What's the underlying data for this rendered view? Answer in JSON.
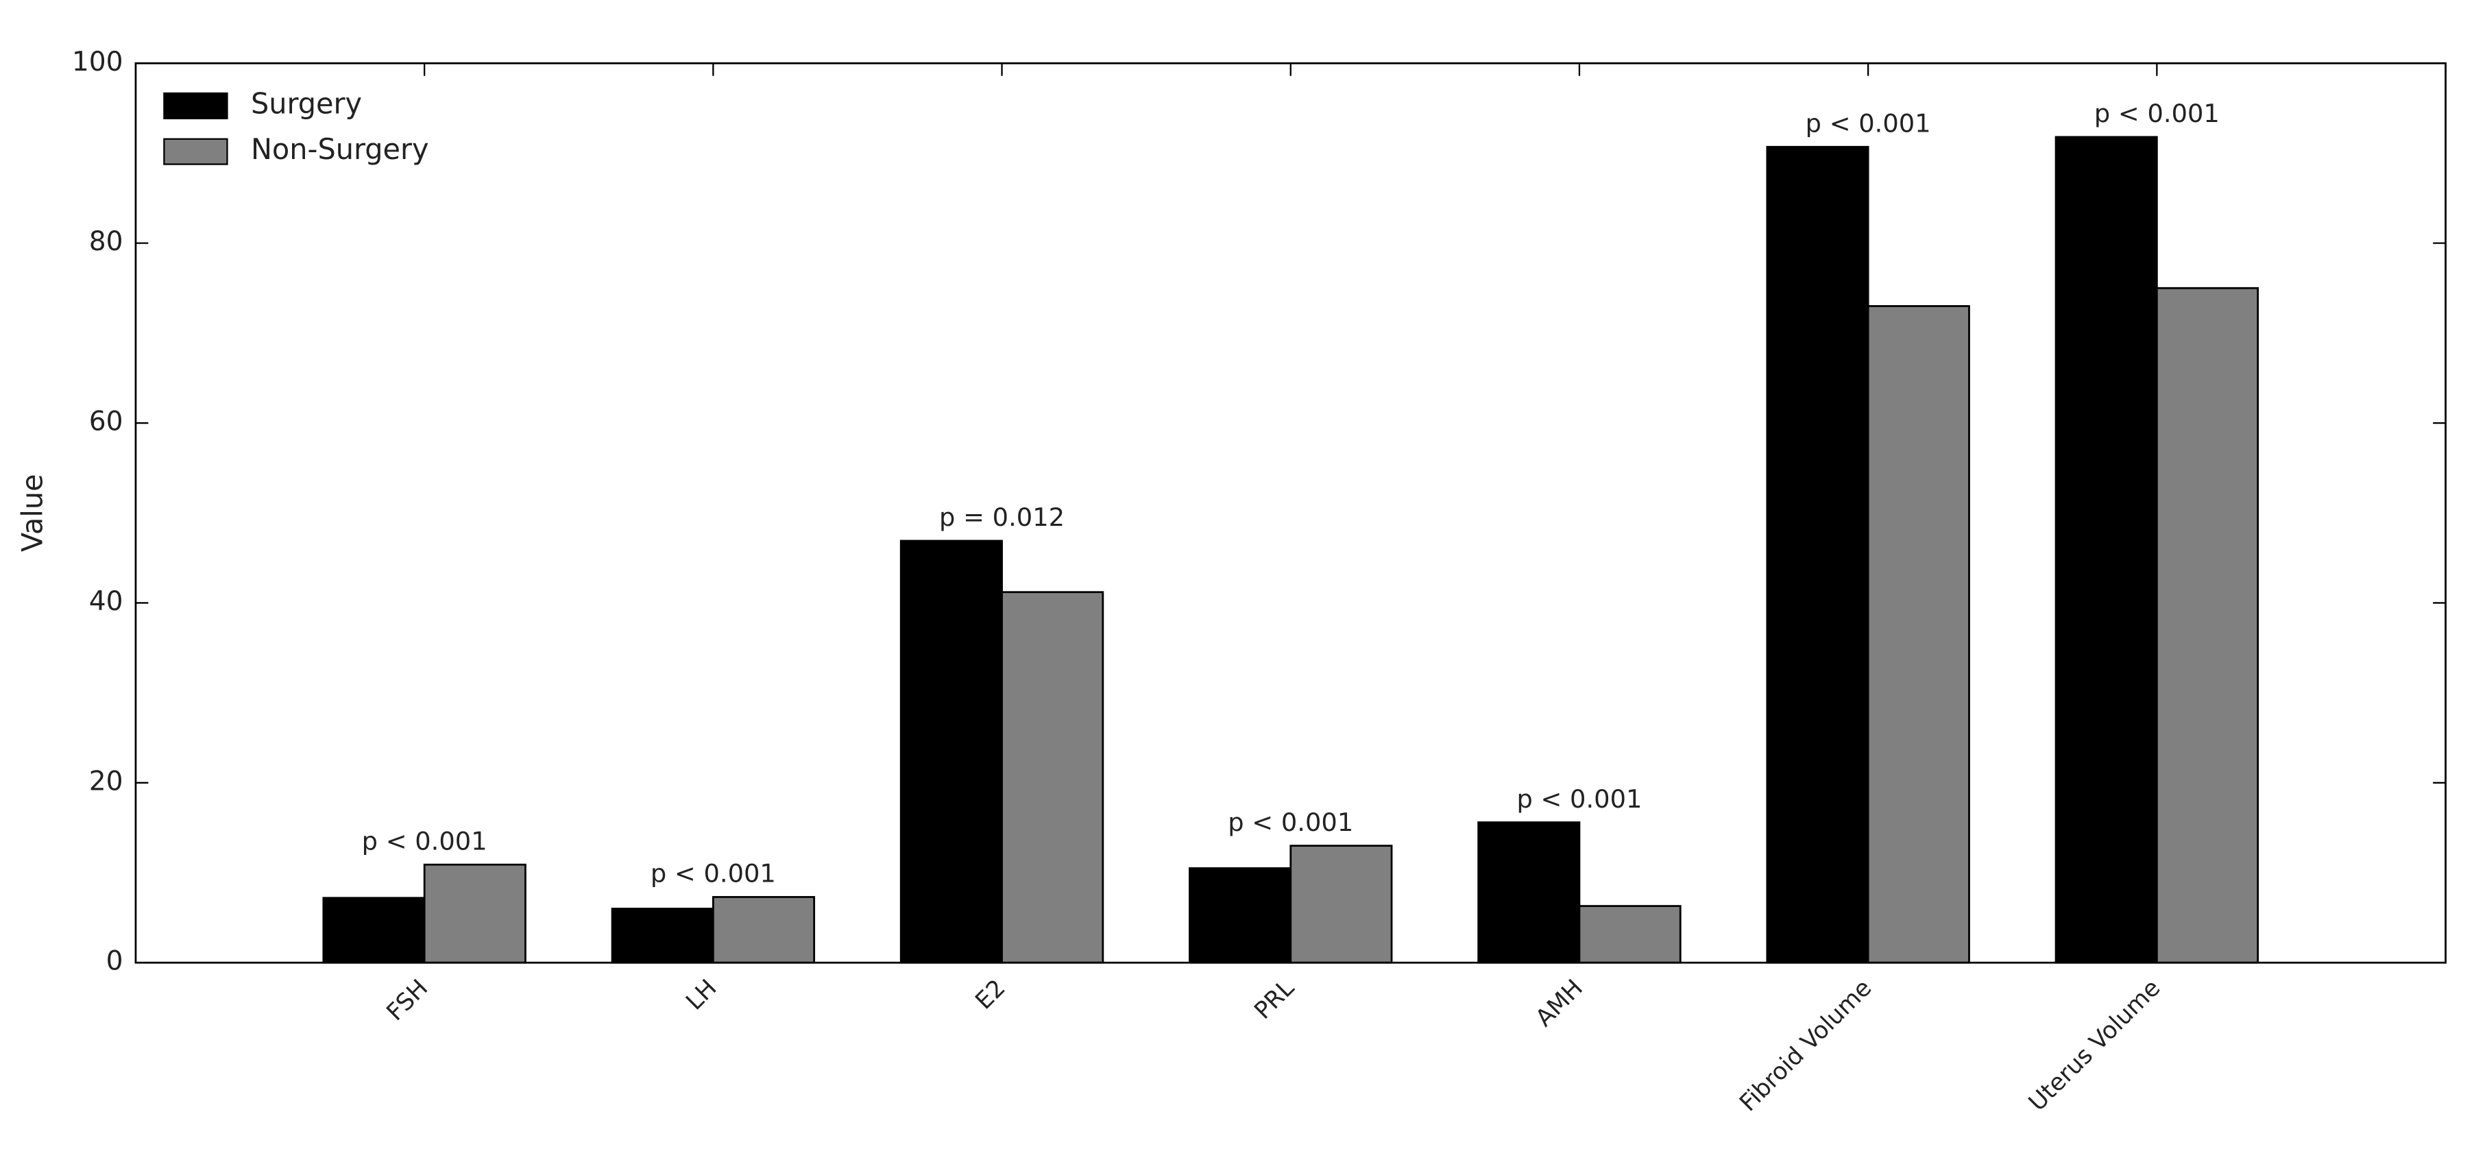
{
  "chart_data": {
    "type": "bar",
    "ylabel": "Value",
    "categories": [
      "FSH",
      "LH",
      "E2",
      "PRL",
      "AMH",
      "Fibroid Volume",
      "Uterus Volume"
    ],
    "series": [
      {
        "name": "Surgery",
        "color": "#000000",
        "values": [
          7.2,
          6.0,
          46.9,
          10.5,
          15.6,
          90.7,
          91.8
        ]
      },
      {
        "name": "Non-Surgery",
        "color": "#808080",
        "values": [
          10.9,
          7.3,
          41.2,
          13.0,
          6.3,
          73.0,
          75.0
        ]
      }
    ],
    "annotations": [
      "p < 0.001",
      "p < 0.001",
      "p = 0.012",
      "p < 0.001",
      "p < 0.001",
      "p < 0.001",
      "p < 0.001"
    ],
    "ylim": [
      0,
      100
    ],
    "yticks": [
      0,
      20,
      40,
      60,
      80,
      100
    ],
    "grid": false,
    "legend": "upper left"
  }
}
